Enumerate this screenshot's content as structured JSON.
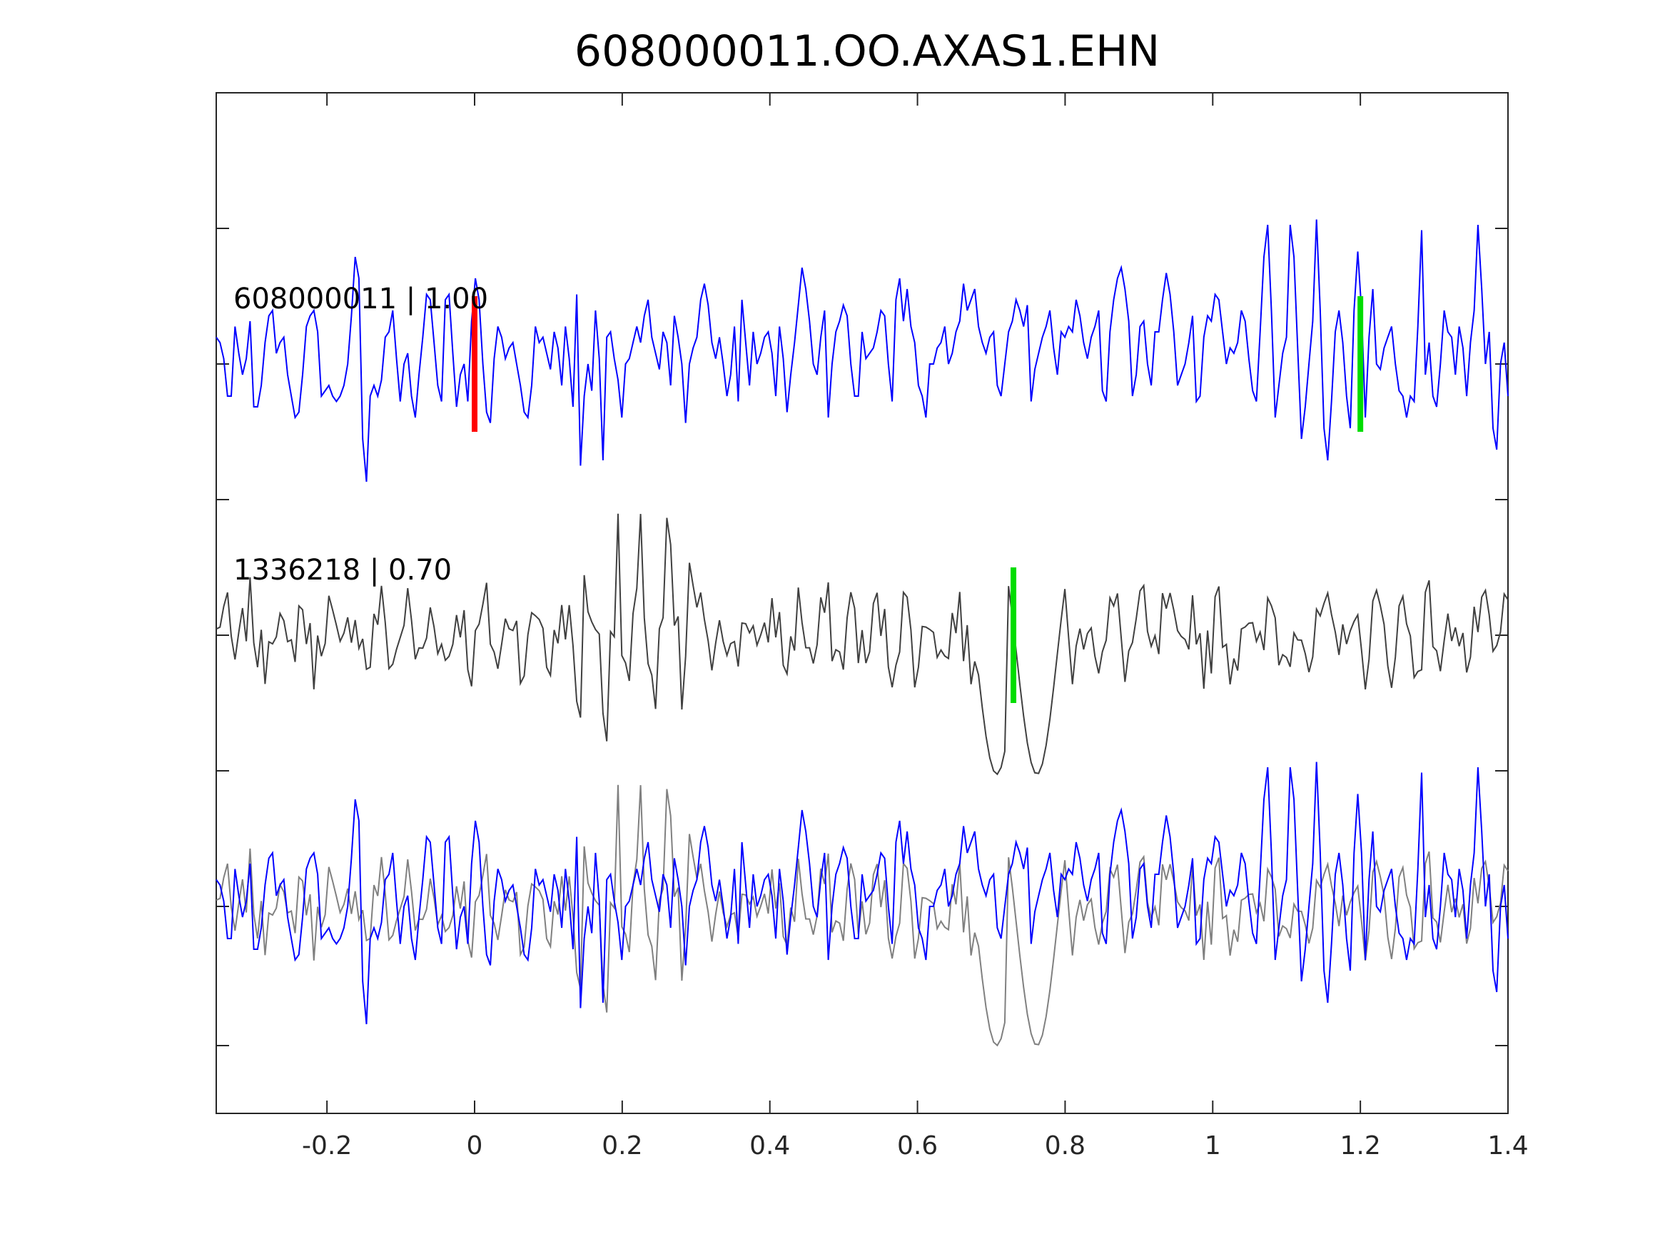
{
  "chart_data": {
    "type": "line",
    "title": "608000011.OO.AXAS1.EHN",
    "xlabel": "",
    "ylabel": "",
    "xlim": [
      -0.35,
      1.4
    ],
    "xticks": [
      -0.2,
      0,
      0.2,
      0.4,
      0.6,
      0.8,
      1,
      1.2,
      1.4
    ],
    "xtick_labels": [
      "-0.2",
      "0",
      "0.2",
      "0.4",
      "0.6",
      "0.8",
      "1",
      "1.2",
      "1.4"
    ],
    "grid": false,
    "legend": "none",
    "panels": [
      {
        "label": "608000011 | 1.00",
        "color": "#0000ff",
        "baseline_tick": 1,
        "markers": [
          {
            "x": 0.0,
            "color": "#ff0000"
          },
          {
            "x": 1.2,
            "color": "#00dd00"
          }
        ]
      },
      {
        "label": "1336218 | 0.70",
        "color": "#404040",
        "baseline_tick": 3,
        "markers": [
          {
            "x": 0.73,
            "color": "#00dd00"
          }
        ]
      },
      {
        "label": "",
        "baseline_tick": 5,
        "overlay": true
      }
    ],
    "series": [
      {
        "values": [
          0.25,
          0.2,
          0.05,
          -0.3,
          -0.3,
          0.35,
          0.1,
          -0.1,
          0.05,
          0.4,
          -0.4,
          -0.4,
          -0.2,
          0.2,
          0.45,
          0.5,
          0.1,
          0.2,
          0.25,
          -0.1,
          -0.3,
          -0.5,
          -0.45,
          -0.1,
          0.35,
          0.45,
          0.5,
          0.3,
          -0.3,
          -0.25,
          -0.2,
          -0.3,
          -0.35,
          -0.3,
          -0.2,
          0.0,
          0.45,
          1.0,
          0.8,
          -0.7,
          -1.1,
          -0.3,
          -0.2,
          -0.3,
          -0.15,
          0.25,
          0.3,
          0.5,
          0.05,
          -0.35,
          0.0,
          0.1,
          -0.3,
          -0.5,
          -0.1,
          0.25,
          0.65,
          0.6,
          0.2,
          -0.2,
          -0.35,
          0.6,
          0.65,
          0.1,
          -0.4,
          -0.1,
          0.0,
          -0.35,
          0.4,
          0.8,
          0.6,
          0.0,
          -0.45,
          -0.55,
          0.05,
          0.35,
          0.25,
          0.05,
          0.15,
          0.2,
          0.0,
          -0.2,
          -0.45,
          -0.5,
          -0.2,
          0.35,
          0.2,
          0.25,
          0.1,
          -0.05,
          0.3,
          0.15,
          -0.2,
          0.35,
          0.05,
          -0.4,
          0.65,
          -0.95,
          -0.3,
          0.0,
          -0.25,
          0.5,
          0.05,
          -0.9,
          0.25,
          0.3,
          0.05,
          -0.15,
          -0.5,
          0.0,
          0.05,
          0.2,
          0.35,
          0.2,
          0.45,
          0.6,
          0.25,
          0.1,
          -0.05,
          0.3,
          0.2,
          -0.2,
          0.45,
          0.25,
          0.0,
          -0.55,
          0.0,
          0.15,
          0.25,
          0.6,
          0.75,
          0.55,
          0.2,
          0.05,
          0.25,
          0.0,
          -0.3,
          -0.1,
          0.35,
          -0.35,
          0.6,
          0.2,
          -0.2,
          0.3,
          0.0,
          0.1,
          0.25,
          0.3,
          0.1,
          -0.3,
          0.35,
          0.05,
          -0.45,
          -0.1,
          0.2,
          0.55,
          0.9,
          0.7,
          0.4,
          0.0,
          -0.1,
          0.25,
          0.5,
          -0.5,
          0.0,
          0.3,
          0.4,
          0.55,
          0.45,
          0.0,
          -0.3,
          -0.3,
          0.3,
          0.05,
          0.1,
          0.15,
          0.3,
          0.5,
          0.45,
          0.0,
          -0.35,
          0.6,
          0.8,
          0.4,
          0.7,
          0.35,
          0.2,
          -0.2,
          -0.3,
          -0.5,
          0.0,
          0.0,
          0.15,
          0.2,
          0.35,
          0.0,
          0.1,
          0.3,
          0.4,
          0.75,
          0.5,
          0.6,
          0.7,
          0.35,
          0.2,
          0.1,
          0.25,
          0.3,
          -0.2,
          -0.3,
          0.0,
          0.3,
          0.4,
          0.6,
          0.5,
          0.35,
          0.55,
          -0.35,
          -0.05,
          0.1,
          0.25,
          0.35,
          0.5,
          0.15,
          -0.1,
          0.3,
          0.25,
          0.35,
          0.3,
          0.6,
          0.45,
          0.2,
          0.05,
          0.25,
          0.35,
          0.5,
          -0.25,
          -0.35,
          0.3,
          0.6,
          0.8,
          0.9,
          0.7,
          0.4,
          -0.3,
          -0.1,
          0.35,
          0.4,
          0.0,
          -0.2,
          0.3,
          0.3,
          0.6,
          0.85,
          0.65,
          0.3,
          -0.2,
          -0.1,
          0.0,
          0.2,
          0.45,
          -0.35,
          -0.3,
          0.25,
          0.45,
          0.4,
          0.65,
          0.6,
          0.3,
          0.0,
          0.15,
          0.1,
          0.2,
          0.5,
          0.4,
          0.05,
          -0.25,
          -0.35,
          0.3,
          1.0,
          1.3,
          0.5,
          -0.5,
          -0.2,
          0.1,
          0.25,
          1.3,
          1.0,
          0.15,
          -0.7,
          -0.4,
          0.0,
          0.4,
          1.35,
          0.5,
          -0.6,
          -0.9,
          -0.35,
          0.3,
          0.5,
          0.2,
          -0.3,
          -0.6,
          0.5,
          1.05,
          0.5,
          -0.5,
          0.25,
          0.7,
          0.0,
          -0.05,
          0.15,
          0.25,
          0.35,
          0.0,
          -0.25,
          -0.3,
          -0.5,
          -0.3,
          -0.35,
          0.35,
          1.25,
          -0.1,
          0.2,
          -0.3,
          -0.4,
          0.0,
          0.5,
          0.3,
          0.25,
          -0.1,
          0.35,
          0.15,
          -0.3,
          0.2,
          0.5,
          1.3,
          0.7,
          0.0,
          0.3,
          -0.6,
          -0.8,
          0.0,
          0.2,
          -0.3
        ]
      }
    ]
  }
}
